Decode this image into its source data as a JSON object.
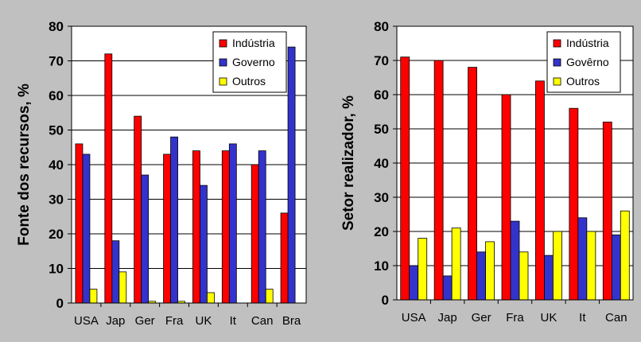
{
  "colors": {
    "background": "#c0c0c0",
    "plot": "#ffffff",
    "industria": "#ff0000",
    "governo": "#3333cc",
    "outros": "#ffff00"
  },
  "chart_data": [
    {
      "type": "bar",
      "ylabel": "Fonte dos recursos, %",
      "ylim": [
        0,
        80
      ],
      "yticks": [
        "0",
        "10",
        "20",
        "30",
        "40",
        "50",
        "60",
        "70",
        "80"
      ],
      "grid": true,
      "legend_position": "top-right",
      "categories": [
        "USA",
        "Jap",
        "Ger",
        "Fra",
        "UK",
        "It",
        "Can",
        "Bra"
      ],
      "series": [
        {
          "name": "Indústria",
          "values": [
            46,
            72,
            54,
            43,
            44,
            44,
            40,
            26
          ]
        },
        {
          "name": "Governo",
          "values": [
            43,
            18,
            37,
            48,
            34,
            46,
            44,
            74
          ]
        },
        {
          "name": "Outros",
          "values": [
            4,
            9,
            0.5,
            0.5,
            3,
            0,
            4,
            0
          ]
        }
      ]
    },
    {
      "type": "bar",
      "ylabel": "Setor realizador, %",
      "ylim": [
        0,
        80
      ],
      "yticks": [
        "0",
        "10",
        "20",
        "30",
        "40",
        "50",
        "60",
        "70",
        "80"
      ],
      "grid": true,
      "legend_position": "top-right",
      "categories": [
        "USA",
        "Jap",
        "Ger",
        "Fra",
        "UK",
        "It",
        "Can"
      ],
      "series": [
        {
          "name": "Indústria",
          "values": [
            71,
            70,
            68,
            60,
            64,
            56,
            52
          ]
        },
        {
          "name": "Govêrno",
          "values": [
            10,
            7,
            14,
            23,
            13,
            24,
            19
          ]
        },
        {
          "name": "Outros",
          "values": [
            18,
            21,
            17,
            14,
            20,
            20,
            26
          ]
        }
      ]
    }
  ]
}
